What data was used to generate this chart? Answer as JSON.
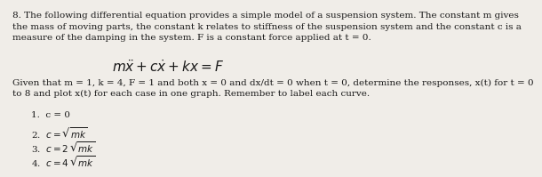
{
  "background_color": "#f0ede8",
  "paragraph_line1": "8. The following differential equation provides a simple model of a suspension system. The constant m gives",
  "paragraph_line2": "the mass of moving parts, the constant k relates to stiffness of the suspension system and the constant c is a",
  "paragraph_line3": "measure of the damping in the system. F is a constant force applied at t = 0.",
  "given_line1": "Given that m = 1, k = 4, F = 1 and both x = 0 and dx/dt = 0 when t = 0, determine the responses, x(t) for t = 0",
  "given_line2": "to 8 and plot x(t) for each case in one graph. Remember to label each curve.",
  "list_item1": "1.  c = 0",
  "font_family": "DejaVu Serif",
  "font_size_body": 7.5,
  "font_size_eq": 11,
  "text_color": "#1a1a1a"
}
